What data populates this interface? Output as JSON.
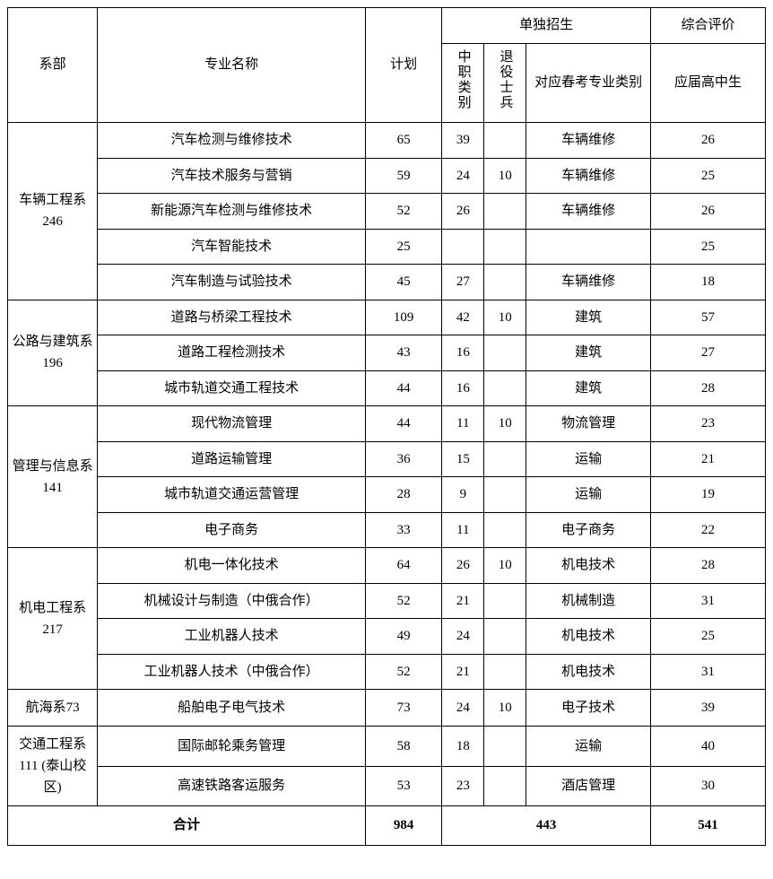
{
  "headers": {
    "dept": "系部",
    "major": "专业名称",
    "plan": "计划",
    "separate_enrollment": "单独招生",
    "comprehensive": "综合评价",
    "zz": "中职类别",
    "ty": "退役士兵",
    "category": "对应春考专业类别",
    "highschool": "应届高中生"
  },
  "departments": [
    {
      "name": "车辆工程系 246",
      "rows": [
        {
          "major": "汽车检测与维修技术",
          "plan": "65",
          "zz": "39",
          "ty": "",
          "category": "车辆维修",
          "hs": "26"
        },
        {
          "major": "汽车技术服务与营销",
          "plan": "59",
          "zz": "24",
          "ty": "10",
          "category": "车辆维修",
          "hs": "25"
        },
        {
          "major": "新能源汽车检测与维修技术",
          "plan": "52",
          "zz": "26",
          "ty": "",
          "category": "车辆维修",
          "hs": "26"
        },
        {
          "major": "汽车智能技术",
          "plan": "25",
          "zz": "",
          "ty": "",
          "category": "",
          "hs": "25"
        },
        {
          "major": "汽车制造与试验技术",
          "plan": "45",
          "zz": "27",
          "ty": "",
          "category": "车辆维修",
          "hs": "18"
        }
      ]
    },
    {
      "name": "公路与建筑系 196",
      "rows": [
        {
          "major": "道路与桥梁工程技术",
          "plan": "109",
          "zz": "42",
          "ty": "10",
          "category": "建筑",
          "hs": "57"
        },
        {
          "major": "道路工程检测技术",
          "plan": "43",
          "zz": "16",
          "ty": "",
          "category": "建筑",
          "hs": "27"
        },
        {
          "major": "城市轨道交通工程技术",
          "plan": "44",
          "zz": "16",
          "ty": "",
          "category": "建筑",
          "hs": "28"
        }
      ]
    },
    {
      "name": "管理与信息系 141",
      "rows": [
        {
          "major": "现代物流管理",
          "plan": "44",
          "zz": "11",
          "ty": "10",
          "category": "物流管理",
          "hs": "23"
        },
        {
          "major": "道路运输管理",
          "plan": "36",
          "zz": "15",
          "ty": "",
          "category": "运输",
          "hs": "21"
        },
        {
          "major": "城市轨道交通运营管理",
          "plan": "28",
          "zz": "9",
          "ty": "",
          "category": "运输",
          "hs": "19"
        },
        {
          "major": "电子商务",
          "plan": "33",
          "zz": "11",
          "ty": "",
          "category": "电子商务",
          "hs": "22"
        }
      ]
    },
    {
      "name": "机电工程系 217",
      "rows": [
        {
          "major": "机电一体化技术",
          "plan": "64",
          "zz": "26",
          "ty": "10",
          "category": "机电技术",
          "hs": "28"
        },
        {
          "major": "机械设计与制造（中俄合作）",
          "plan": "52",
          "zz": "21",
          "ty": "",
          "category": "机械制造",
          "hs": "31"
        },
        {
          "major": "工业机器人技术",
          "plan": "49",
          "zz": "24",
          "ty": "",
          "category": "机电技术",
          "hs": "25"
        },
        {
          "major": "工业机器人技术（中俄合作）",
          "plan": "52",
          "zz": "21",
          "ty": "",
          "category": "机电技术",
          "hs": "31"
        }
      ]
    },
    {
      "name": "航海系73",
      "rows": [
        {
          "major": "船舶电子电气技术",
          "plan": "73",
          "zz": "24",
          "ty": "10",
          "category": "电子技术",
          "hs": "39"
        }
      ]
    },
    {
      "name": "交通工程系 111 (泰山校区)",
      "rows": [
        {
          "major": "国际邮轮乘务管理",
          "plan": "58",
          "zz": "18",
          "ty": "",
          "category": "运输",
          "hs": "40"
        },
        {
          "major": "高速铁路客运服务",
          "plan": "53",
          "zz": "23",
          "ty": "",
          "category": "酒店管理",
          "hs": "30"
        }
      ]
    }
  ],
  "totals": {
    "label": "合计",
    "plan": "984",
    "separate": "443",
    "eval": "541"
  }
}
